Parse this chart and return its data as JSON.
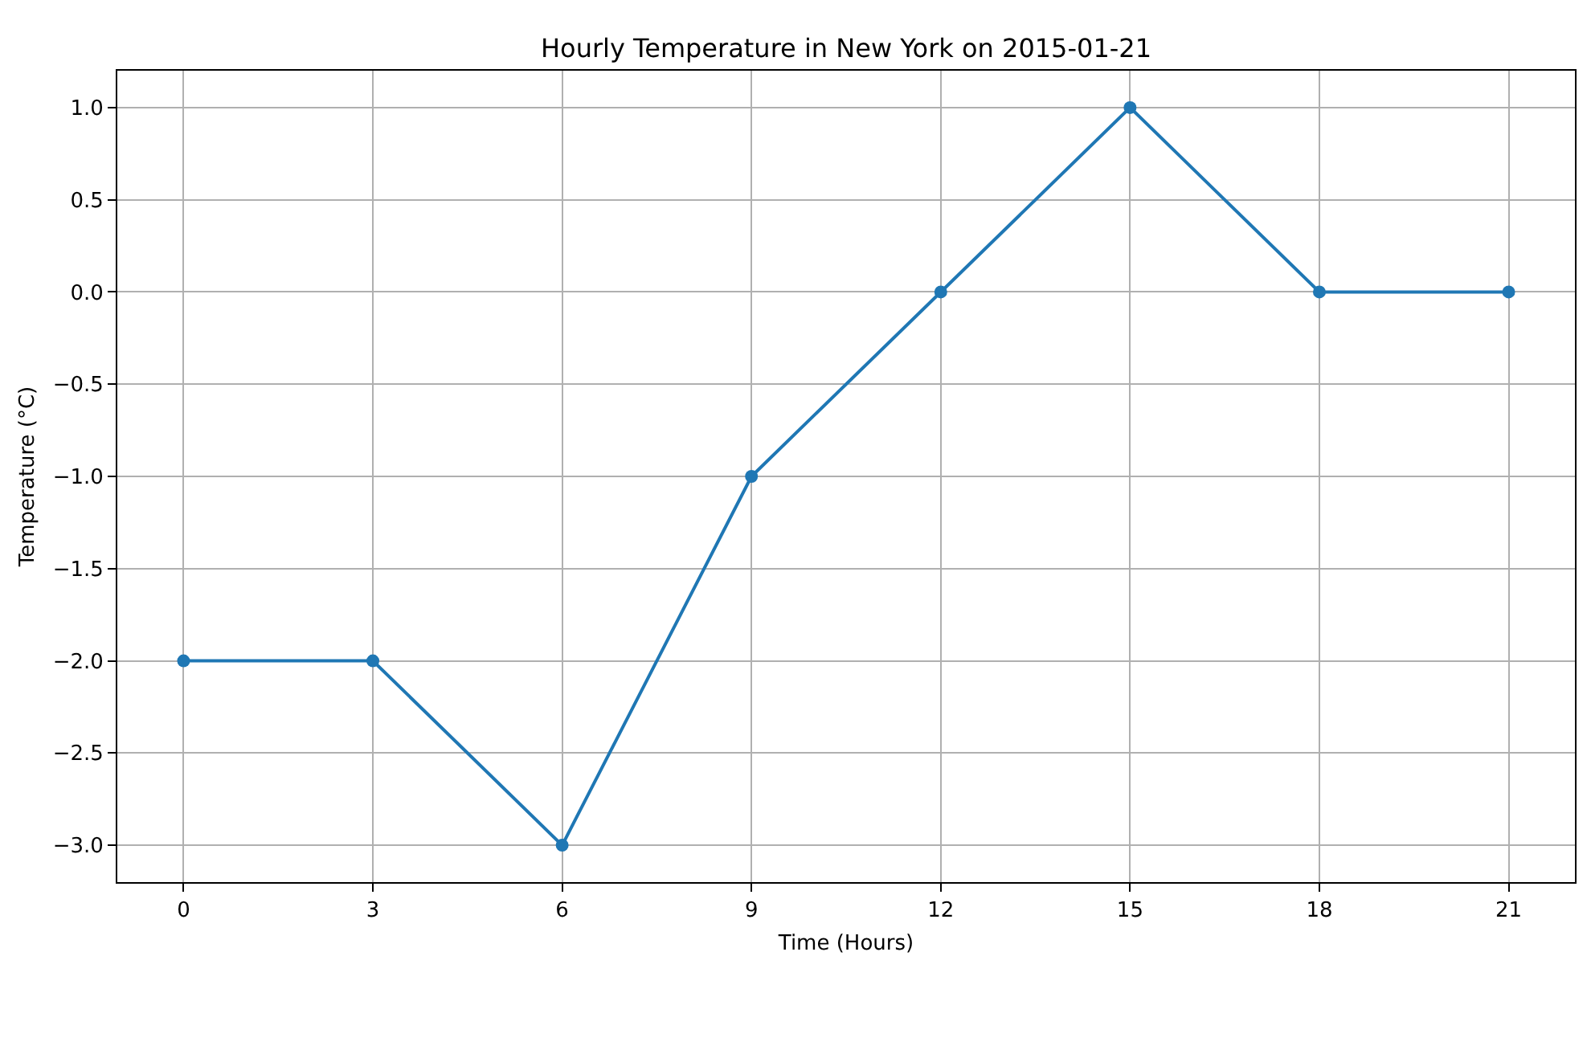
{
  "chart_data": {
    "type": "line",
    "title": "Hourly Temperature in New York on 2015-01-21",
    "xlabel": "Time (Hours)",
    "ylabel": "Temperature (°C)",
    "x": [
      0,
      3,
      6,
      9,
      12,
      15,
      18,
      21
    ],
    "series": [
      {
        "color": "#1f77b4",
        "values": [
          -2,
          -2,
          -3,
          -1,
          0,
          1,
          0,
          0
        ]
      }
    ],
    "xlim": [
      -1.05,
      22.05
    ],
    "ylim": [
      -3.2,
      1.2
    ],
    "xticks": [
      0,
      3,
      6,
      9,
      12,
      15,
      18,
      21
    ],
    "yticks": [
      {
        "value": -3,
        "label": "−3.0"
      },
      {
        "value": -2.5,
        "label": "−2.5"
      },
      {
        "value": -2,
        "label": "−2.0"
      },
      {
        "value": -1.5,
        "label": "−1.5"
      },
      {
        "value": -1,
        "label": "−1.0"
      },
      {
        "value": -0.5,
        "label": "−0.5"
      },
      {
        "value": 0,
        "label": "0.0"
      },
      {
        "value": 0.5,
        "label": "0.5"
      },
      {
        "value": 1,
        "label": "1.0"
      }
    ],
    "grid": true,
    "marker": "circle",
    "line_style": "solid"
  }
}
